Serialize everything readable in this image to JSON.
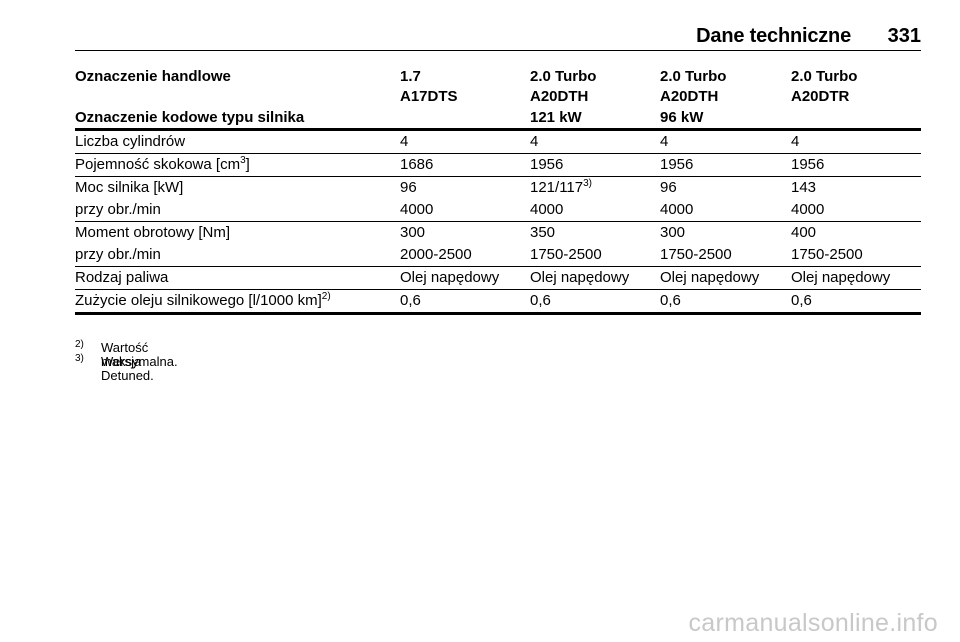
{
  "header": {
    "title": "Dane techniczne",
    "page_number": "331"
  },
  "table": {
    "header_labels": {
      "trade_name": "Oznaczenie handlowe",
      "engine_code": "Oznaczenie kodowe typu silnika"
    },
    "columns": [
      {
        "name": "1.7",
        "code": "A17DTS",
        "power": ""
      },
      {
        "name": "2.0 Turbo",
        "code": "A20DTH",
        "power": "121 kW"
      },
      {
        "name": "2.0 Turbo",
        "code": "A20DTH",
        "power": "96 kW"
      },
      {
        "name": "2.0 Turbo",
        "code": "A20DTR",
        "power": ""
      }
    ],
    "rows": {
      "cylinders": {
        "label": "Liczba cylindrów",
        "values": [
          "4",
          "4",
          "4",
          "4"
        ]
      },
      "displacement": {
        "label": "Pojemność skokowa [cm",
        "label_sup": "3",
        "label_suffix": "]",
        "values": [
          "1686",
          "1956",
          "1956",
          "1956"
        ]
      },
      "power": {
        "label": "Moc silnika [kW]",
        "values": [
          "96",
          "121/117",
          "96",
          "143"
        ],
        "value2_sup": "3)"
      },
      "power_rpm": {
        "label": "przy obr./min",
        "values": [
          "4000",
          "4000",
          "4000",
          "4000"
        ]
      },
      "torque": {
        "label": "Moment obrotowy [Nm]",
        "values": [
          "300",
          "350",
          "300",
          "400"
        ]
      },
      "torque_rpm": {
        "label": "przy obr./min",
        "values": [
          "2000-2500",
          "1750-2500",
          "1750-2500",
          "1750-2500"
        ]
      },
      "fuel": {
        "label": "Rodzaj paliwa",
        "values": [
          "Olej napędowy",
          "Olej napędowy",
          "Olej napędowy",
          "Olej napędowy"
        ]
      },
      "oil": {
        "label": "Zużycie oleju silnikowego [l/1000 km]",
        "label_sup": "2)",
        "values": [
          "0,6",
          "0,6",
          "0,6",
          "0,6"
        ]
      }
    }
  },
  "footnotes": [
    {
      "mark": "2)",
      "text": "Wartość maksymalna."
    },
    {
      "mark": "3)",
      "text": "Wersja Detuned."
    }
  ],
  "watermark": "carmanualsonline.info"
}
